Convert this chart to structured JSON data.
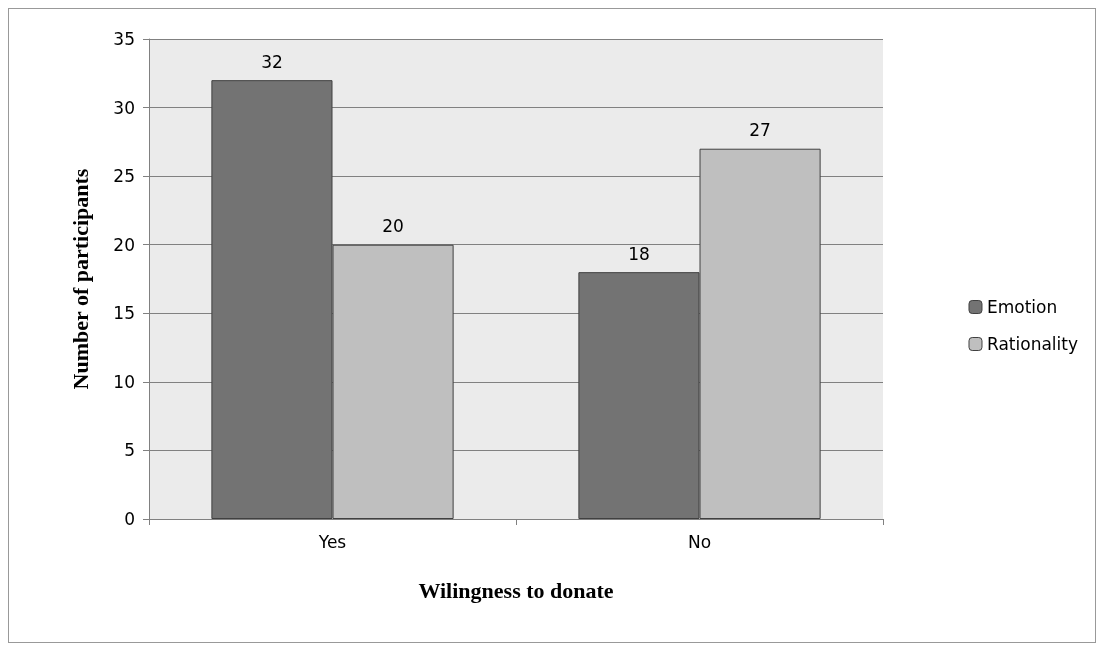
{
  "chart_data": {
    "type": "bar",
    "xlabel": "Wilingness to donate",
    "ylabel": "Number of participants",
    "categories": [
      "Yes",
      "No"
    ],
    "series": [
      {
        "name": "Emotion",
        "color": "#737373",
        "values": [
          32,
          18
        ]
      },
      {
        "name": "Rationality",
        "color": "#bfbfbf",
        "values": [
          20,
          27
        ]
      }
    ],
    "ylim": [
      0,
      35
    ],
    "yticks": [
      0,
      5,
      10,
      15,
      20,
      25,
      30,
      35
    ],
    "grid": "y",
    "legend": "right",
    "data_labels": true
  }
}
